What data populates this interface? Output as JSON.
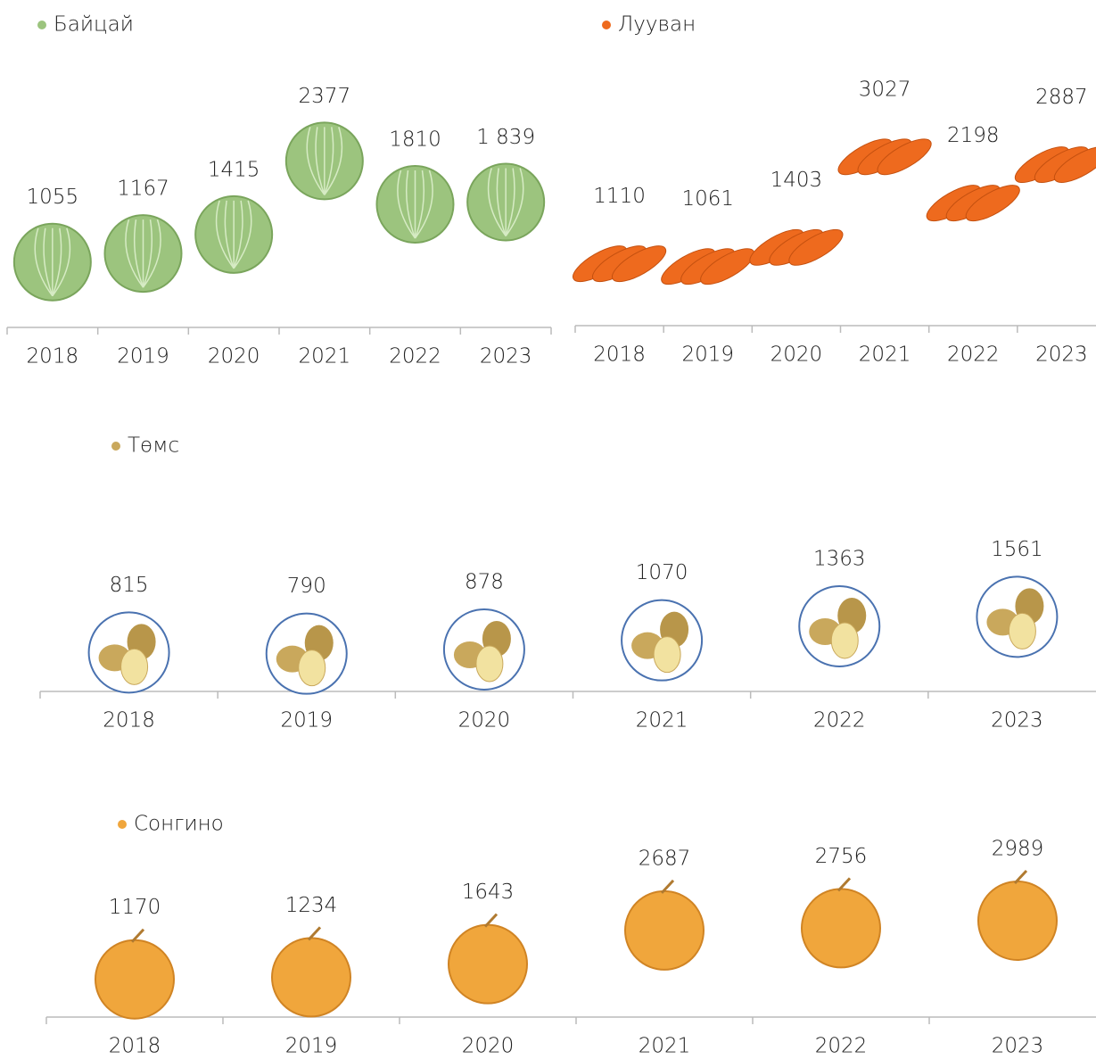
{
  "chart_data": [
    {
      "type": "pictograph",
      "categories": [
        "2018",
        "2019",
        "2020",
        "2021",
        "2022",
        "2023"
      ],
      "series": [
        {
          "name": "Байцай",
          "color": "#9cc47e",
          "values": [
            1055,
            1167,
            1415,
            2377,
            1810,
            1839
          ],
          "value_labels": [
            "1055",
            "1167",
            "1415",
            "2377",
            "1810",
            "1 839"
          ]
        }
      ],
      "ylim": [
        200,
        3700
      ]
    },
    {
      "type": "pictograph",
      "categories": [
        "2018",
        "2019",
        "2020",
        "2021",
        "2022",
        "2023"
      ],
      "series": [
        {
          "name": "Лууван",
          "color": "#ee6a1e",
          "values": [
            1110,
            1061,
            1403,
            3027,
            2198,
            2887
          ]
        }
      ],
      "ylim": [
        0,
        4800
      ]
    },
    {
      "type": "pictograph",
      "categories": [
        "2018",
        "2019",
        "2020",
        "2021",
        "2022",
        "2023"
      ],
      "series": [
        {
          "name": "Төмс",
          "color": "#c9a85c",
          "values": [
            815,
            790,
            878,
            1070,
            1363,
            1561
          ]
        }
      ],
      "ylim": [
        0,
        5600
      ]
    },
    {
      "type": "pictograph",
      "categories": [
        "2018",
        "2019",
        "2020",
        "2021",
        "2022",
        "2023"
      ],
      "series": [
        {
          "name": "Сонгино",
          "color": "#f0a63c",
          "values": [
            1170,
            1234,
            1643,
            2687,
            2756,
            2989
          ]
        }
      ],
      "ylim": [
        0,
        8300
      ]
    }
  ]
}
